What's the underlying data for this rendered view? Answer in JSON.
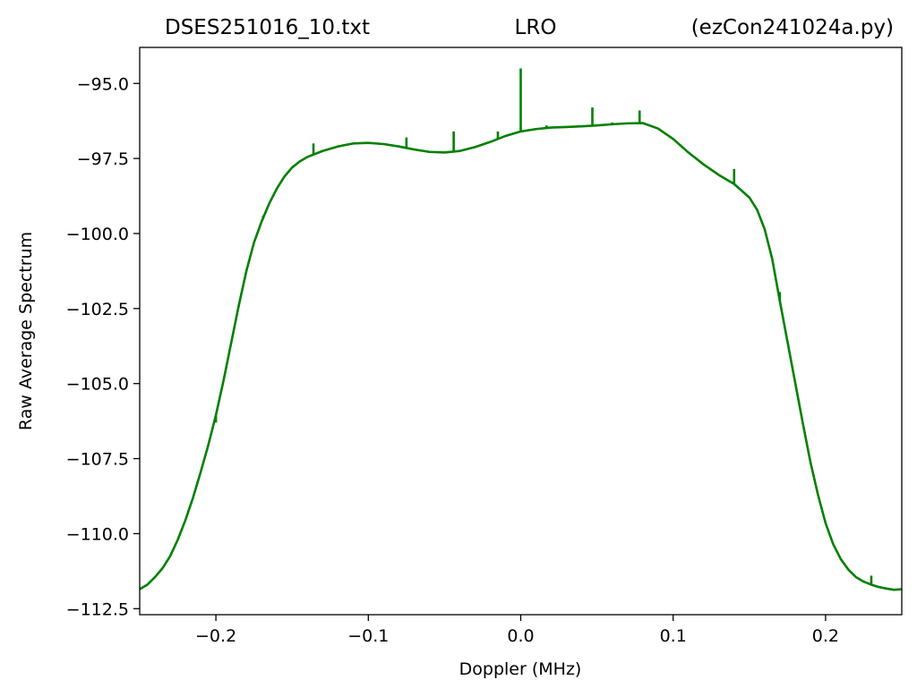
{
  "chart_data": {
    "type": "line",
    "title_left": "DSES251016_10.txt",
    "title_center": "LRO",
    "title_right": "(ezCon241024a.py)",
    "xlabel": "Doppler (MHz)",
    "ylabel": "Raw Average Spectrum",
    "xlim": [
      -0.25,
      0.25
    ],
    "ylim": [
      -112.7,
      -93.8
    ],
    "x_ticks": [
      -0.2,
      -0.1,
      0.0,
      0.1,
      0.2
    ],
    "x_tick_labels": [
      "−0.2",
      "−0.1",
      "0.0",
      "0.1",
      "0.2"
    ],
    "y_ticks": [
      -95.0,
      -97.5,
      -100.0,
      -102.5,
      -105.0,
      -107.5,
      -110.0,
      -112.5
    ],
    "y_tick_labels": [
      "−95.0",
      "−97.5",
      "−100.0",
      "−102.5",
      "−105.0",
      "−107.5",
      "−110.0",
      "−112.5"
    ],
    "grid": false,
    "series": [
      {
        "color": "#008000",
        "points": [
          [
            -0.25,
            -111.85
          ],
          [
            -0.245,
            -111.7
          ],
          [
            -0.24,
            -111.45
          ],
          [
            -0.235,
            -111.15
          ],
          [
            -0.23,
            -110.75
          ],
          [
            -0.225,
            -110.2
          ],
          [
            -0.22,
            -109.55
          ],
          [
            -0.215,
            -108.8
          ],
          [
            -0.21,
            -107.95
          ],
          [
            -0.205,
            -107.05
          ],
          [
            -0.2,
            -106.05
          ],
          [
            -0.195,
            -104.9
          ],
          [
            -0.19,
            -103.65
          ],
          [
            -0.185,
            -102.4
          ],
          [
            -0.18,
            -101.25
          ],
          [
            -0.175,
            -100.3
          ],
          [
            -0.17,
            -99.6
          ],
          [
            -0.165,
            -99.0
          ],
          [
            -0.16,
            -98.5
          ],
          [
            -0.155,
            -98.1
          ],
          [
            -0.15,
            -97.8
          ],
          [
            -0.145,
            -97.6
          ],
          [
            -0.14,
            -97.45
          ],
          [
            -0.13,
            -97.25
          ],
          [
            -0.12,
            -97.1
          ],
          [
            -0.11,
            -97.0
          ],
          [
            -0.1,
            -96.98
          ],
          [
            -0.09,
            -97.02
          ],
          [
            -0.08,
            -97.1
          ],
          [
            -0.07,
            -97.2
          ],
          [
            -0.06,
            -97.28
          ],
          [
            -0.05,
            -97.3
          ],
          [
            -0.04,
            -97.25
          ],
          [
            -0.03,
            -97.12
          ],
          [
            -0.02,
            -96.95
          ],
          [
            -0.01,
            -96.75
          ],
          [
            0.0,
            -96.6
          ],
          [
            0.01,
            -96.52
          ],
          [
            0.02,
            -96.47
          ],
          [
            0.03,
            -96.45
          ],
          [
            0.04,
            -96.43
          ],
          [
            0.05,
            -96.4
          ],
          [
            0.06,
            -96.36
          ],
          [
            0.07,
            -96.33
          ],
          [
            0.08,
            -96.32
          ],
          [
            0.09,
            -96.5
          ],
          [
            0.1,
            -96.85
          ],
          [
            0.11,
            -97.3
          ],
          [
            0.12,
            -97.7
          ],
          [
            0.13,
            -98.05
          ],
          [
            0.14,
            -98.35
          ],
          [
            0.15,
            -98.8
          ],
          [
            0.155,
            -99.2
          ],
          [
            0.16,
            -99.85
          ],
          [
            0.165,
            -100.85
          ],
          [
            0.17,
            -102.25
          ],
          [
            0.175,
            -103.6
          ],
          [
            0.18,
            -104.95
          ],
          [
            0.185,
            -106.3
          ],
          [
            0.19,
            -107.6
          ],
          [
            0.195,
            -108.7
          ],
          [
            0.2,
            -109.65
          ],
          [
            0.205,
            -110.35
          ],
          [
            0.21,
            -110.85
          ],
          [
            0.215,
            -111.2
          ],
          [
            0.22,
            -111.45
          ],
          [
            0.225,
            -111.6
          ],
          [
            0.23,
            -111.7
          ],
          [
            0.235,
            -111.78
          ],
          [
            0.24,
            -111.83
          ],
          [
            0.245,
            -111.87
          ],
          [
            0.25,
            -111.85
          ]
        ],
        "spikes": [
          [
            -0.2,
            -106.3
          ],
          [
            -0.169,
            -99.4
          ],
          [
            -0.136,
            -97.0
          ],
          [
            -0.075,
            -96.8
          ],
          [
            -0.044,
            -96.6
          ],
          [
            -0.015,
            -96.6
          ],
          [
            0.0,
            -94.5
          ],
          [
            0.017,
            -96.4
          ],
          [
            0.047,
            -95.8
          ],
          [
            0.06,
            -96.3
          ],
          [
            0.078,
            -95.9
          ],
          [
            0.14,
            -97.85
          ],
          [
            0.17,
            -101.95
          ],
          [
            0.23,
            -111.4
          ]
        ]
      }
    ]
  }
}
